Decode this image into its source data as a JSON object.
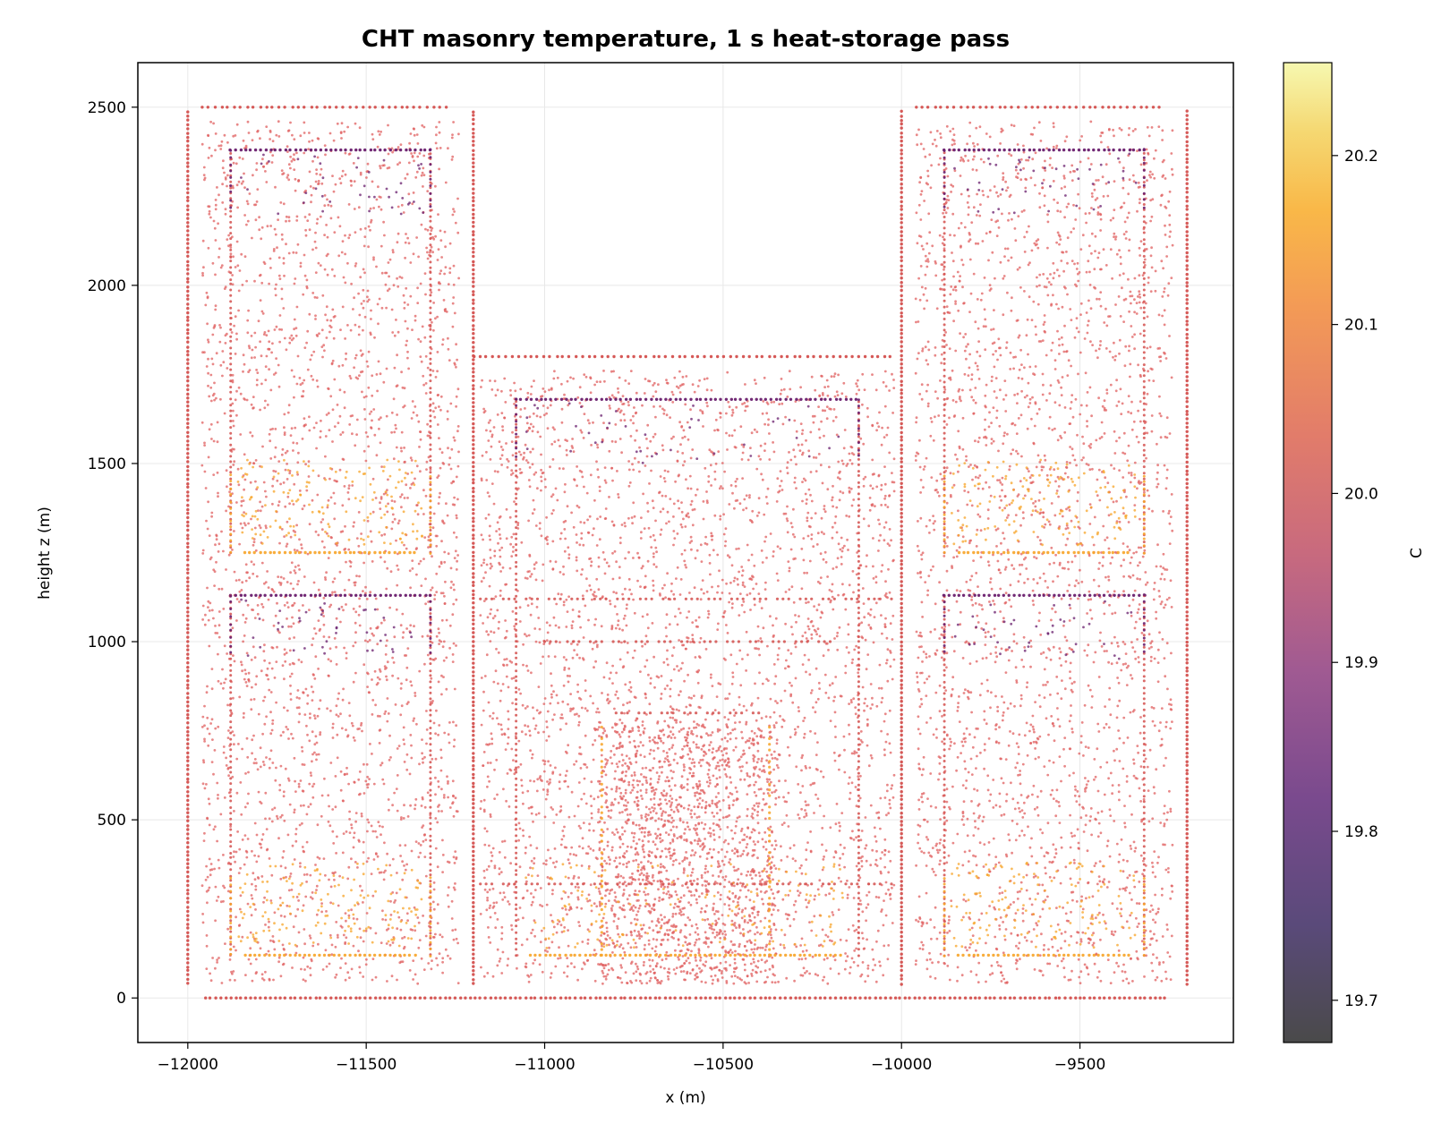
{
  "chart_data": {
    "type": "scatter",
    "title": "CHT masonry temperature, 1 s heat-storage pass",
    "xlabel": "x (m)",
    "ylabel": "height z (m)",
    "xlim": [
      -12140,
      -9070
    ],
    "ylim": [
      -125,
      2625
    ],
    "xticks": [
      -12000,
      -11500,
      -11000,
      -10500,
      -10000,
      -9500
    ],
    "yticks": [
      0,
      500,
      1000,
      1500,
      2000,
      2500
    ],
    "grid": true,
    "colorbar": {
      "label": "C",
      "colormap": "inferno",
      "min": 19.675,
      "max": 20.255,
      "ticks": [
        19.7,
        19.8,
        19.9,
        20.0,
        20.1,
        20.2
      ]
    },
    "colors": {
      "bulk": "#d4504e",
      "interior": "#e06060",
      "cold_ceiling": "#6a1f6e",
      "warm_floor": "#f7a428"
    },
    "structure": {
      "outer_walls": {
        "left_tower": [
          -12000,
          -11200,
          0,
          2500
        ],
        "center_block": [
          -11200,
          -10000,
          0,
          1800
        ],
        "right_tower": [
          -10000,
          -9200,
          0,
          2500
        ]
      },
      "rooms": [
        {
          "x": [
            -11880,
            -11320
          ],
          "z": [
            1250,
            2380
          ],
          "level": "upper"
        },
        {
          "x": [
            -11880,
            -11320
          ],
          "z": [
            120,
            1130
          ],
          "level": "lower"
        },
        {
          "x": [
            -9880,
            -9320
          ],
          "z": [
            1250,
            2380
          ],
          "level": "upper"
        },
        {
          "x": [
            -9880,
            -9320
          ],
          "z": [
            120,
            1130
          ],
          "level": "lower"
        },
        {
          "x": [
            -11080,
            -10120
          ],
          "z": [
            120,
            1680
          ],
          "level": "hall"
        }
      ],
      "inner_dashed_lines": {
        "horizontal": [
          {
            "x": [
              -11180,
              -10020
            ],
            "z": 1120
          },
          {
            "x": [
              -11000,
              -10200
            ],
            "z": 1000
          },
          {
            "x": [
              -10800,
              -10400
            ],
            "z": 800
          },
          {
            "x": [
              -11180,
              -10020
            ],
            "z": 320
          }
        ],
        "vertical": [
          {
            "x": -10840,
            "z": [
              120,
              760
            ]
          },
          {
            "x": -10370,
            "z": [
              120,
              760
            ]
          }
        ]
      }
    }
  }
}
